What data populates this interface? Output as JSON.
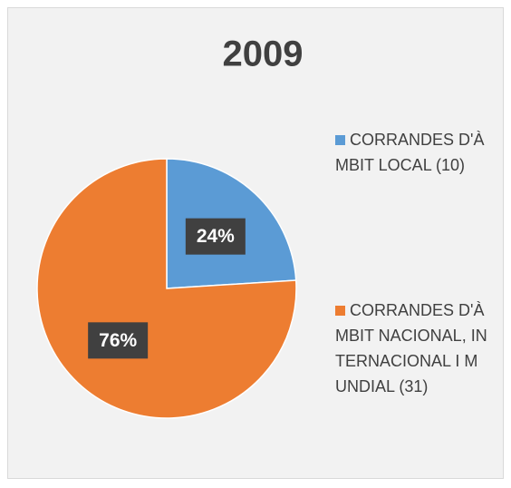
{
  "chart_data": {
    "type": "pie",
    "title": "2009",
    "categories": [
      "CORRANDES D'ÀMBIT LOCAL (10)",
      "CORRANDES D'ÀMBIT NACIONAL, INTERNACIONAL I MUNDIAL (31)"
    ],
    "values": [
      24,
      76
    ],
    "value_labels": [
      "24%",
      "76%"
    ],
    "colors": [
      "#5b9bd5",
      "#ed7d31"
    ],
    "legend": "right"
  }
}
